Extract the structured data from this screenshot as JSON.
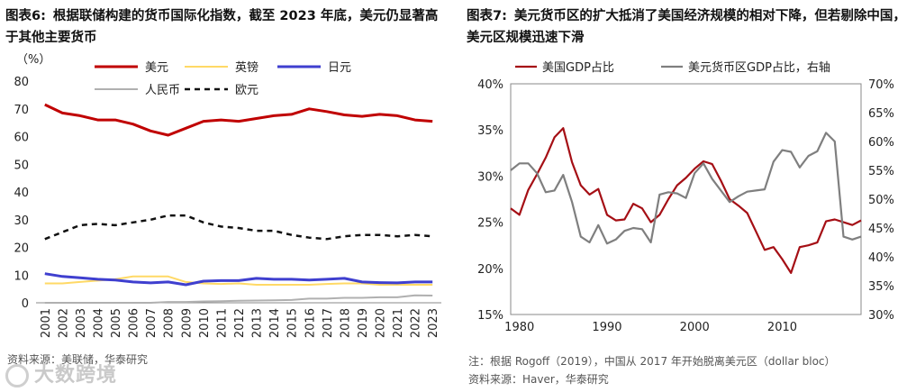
{
  "left": {
    "title_num": "图表6:",
    "title_text": "根据联储构建的货币国际化指数，截至 2023 年底，美元仍显著高于其他主要货币",
    "source": "资料来源：美联储，华泰研究",
    "watermark": "大数跨境",
    "chart_data": {
      "type": "line",
      "ylabel": "（%）",
      "ylim": [
        0,
        80
      ],
      "yticks": [
        0,
        10,
        20,
        30,
        40,
        50,
        60,
        70,
        80
      ],
      "categories": [
        "2001",
        "2002",
        "2003",
        "2004",
        "2005",
        "2006",
        "2007",
        "2008",
        "2009",
        "2010",
        "2011",
        "2012",
        "2013",
        "2014",
        "2015",
        "2016",
        "2017",
        "2018",
        "2019",
        "2020",
        "2021",
        "2022",
        "2023"
      ],
      "series": [
        {
          "name": "美元",
          "color": "#c00000",
          "dash": "",
          "width": 3,
          "values": [
            71.5,
            68.5,
            67.5,
            66,
            66,
            64.5,
            62,
            60.5,
            63,
            65.5,
            66,
            65.5,
            66.5,
            67.5,
            68,
            70,
            69,
            67.8,
            67.3,
            68,
            67.5,
            66,
            65.5
          ]
        },
        {
          "name": "英镑",
          "color": "#ffd966",
          "dash": "",
          "width": 2,
          "values": [
            7,
            7,
            7.5,
            8,
            8.5,
            9.5,
            9.5,
            9.5,
            7.5,
            7,
            6.8,
            7,
            6.5,
            6.5,
            6.5,
            6.5,
            6.8,
            7,
            7,
            6.5,
            6.5,
            6.5,
            6.5
          ]
        },
        {
          "name": "日元",
          "color": "#3f3fcf",
          "dash": "",
          "width": 3,
          "values": [
            10.5,
            9.5,
            9,
            8.5,
            8.2,
            7.5,
            7.2,
            7.5,
            6.5,
            7.8,
            8,
            8,
            8.8,
            8.5,
            8.5,
            8.2,
            8.5,
            8.8,
            7.5,
            7.3,
            7.2,
            7.5,
            7.5
          ]
        },
        {
          "name": "人民币",
          "color": "#b0b0b0",
          "dash": "",
          "width": 2,
          "values": [
            0,
            0,
            0,
            0,
            0,
            0,
            0,
            0.3,
            0.3,
            0.5,
            0.6,
            0.7,
            0.8,
            0.9,
            1,
            1.5,
            1.5,
            1.8,
            1.8,
            2,
            2,
            2.7,
            2.6
          ]
        },
        {
          "name": "欧元",
          "color": "#111111",
          "dash": "6,5",
          "width": 2.5,
          "values": [
            23,
            25.5,
            28,
            28.5,
            28,
            29,
            30,
            31.5,
            31.5,
            29,
            27.5,
            27,
            26,
            26,
            24.5,
            23.5,
            23,
            24,
            24.5,
            24.5,
            24,
            24.5,
            24
          ]
        }
      ]
    }
  },
  "right": {
    "title_num": "图表7:",
    "title_text": "美元货币区的扩大抵消了美国经济规模的相对下降，但若剔除中国，美元区规模迅速下滑",
    "note": "注：根据 Rogoff（2019），中国从 2017 年开始脱离美元区（dollar bloc）",
    "source": "资料来源：Haver，华泰研究",
    "chart_data": {
      "type": "line",
      "xlim": [
        1980,
        2019
      ],
      "xticks": [
        1980,
        1990,
        2000,
        2010
      ],
      "ylim_left": [
        15,
        40
      ],
      "yticks_left": [
        "15%",
        "20%",
        "25%",
        "30%",
        "35%",
        "40%"
      ],
      "ylim_right": [
        30,
        70
      ],
      "yticks_right": [
        "30%",
        "35%",
        "40%",
        "45%",
        "50%",
        "55%",
        "60%",
        "65%",
        "70%"
      ],
      "series": [
        {
          "name": "美国GDP占比",
          "axis": "left",
          "color": "#a50f15",
          "x": [
            1979,
            1980,
            1981,
            1982,
            1983,
            1984,
            1985,
            1986,
            1987,
            1988,
            1989,
            1990,
            1991,
            1992,
            1993,
            1994,
            1995,
            1996,
            1997,
            1998,
            1999,
            2000,
            2001,
            2002,
            2003,
            2004,
            2005,
            2006,
            2007,
            2008,
            2009,
            2010,
            2011,
            2012,
            2013,
            2014,
            2015,
            2016,
            2017,
            2018,
            2019
          ],
          "y": [
            26.5,
            25.8,
            28.5,
            30.2,
            32,
            34.2,
            35.2,
            31.5,
            29,
            28,
            28.6,
            25.8,
            25.2,
            25.3,
            27,
            26.5,
            25,
            25.8,
            27.5,
            29,
            29.8,
            30.8,
            31.6,
            31.3,
            29.5,
            27.5,
            26.8,
            26,
            24,
            22,
            22.3,
            21,
            19.5,
            22.3,
            22.5,
            22.8,
            25.1,
            25.3,
            25,
            24.7,
            25.2
          ]
        },
        {
          "name": "美元货币区GDP占比，右轴",
          "axis": "right",
          "color": "#7f7f7f",
          "x": [
            1979,
            1980,
            1981,
            1982,
            1983,
            1984,
            1985,
            1986,
            1987,
            1988,
            1989,
            1990,
            1991,
            1992,
            1993,
            1994,
            1995,
            1996,
            1997,
            1998,
            1999,
            2000,
            2001,
            2002,
            2003,
            2004,
            2005,
            2006,
            2007,
            2008,
            2009,
            2010,
            2011,
            2012,
            2013,
            2014,
            2015,
            2016,
            2017,
            2018,
            2019
          ],
          "y": [
            55,
            56.2,
            56.2,
            54.5,
            51.2,
            51.5,
            54.2,
            49.5,
            43.5,
            42.5,
            45.5,
            42.3,
            43,
            44.5,
            45,
            44.8,
            42.5,
            50.8,
            51.2,
            51,
            50.2,
            54.5,
            56.2,
            53.5,
            51.5,
            49.5,
            50.5,
            51.3,
            51.5,
            51.7,
            56.5,
            58.5,
            58.2,
            55.5,
            57.5,
            58.3,
            61.5,
            60,
            43.5,
            43,
            43.5
          ]
        }
      ]
    }
  }
}
